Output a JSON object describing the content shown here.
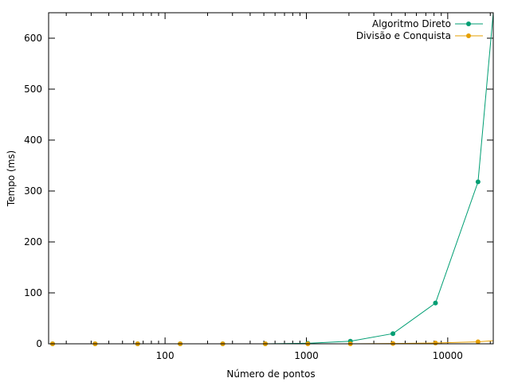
{
  "chart_data": {
    "type": "line",
    "title": "",
    "xlabel": "Número de pontos",
    "ylabel": "Tempo (ms)",
    "x_scale": "log",
    "xlim": [
      15,
      21000
    ],
    "ylim": [
      0,
      650
    ],
    "x_tick_labels": [
      {
        "value": 100,
        "label": "100"
      },
      {
        "value": 1000,
        "label": "1000"
      },
      {
        "value": 10000,
        "label": "10000"
      }
    ],
    "y_ticks": [
      0,
      100,
      200,
      300,
      400,
      500,
      600
    ],
    "grid": false,
    "legend_position": "top-right",
    "series": [
      {
        "name": "Algoritmo Direto",
        "color": "#009e73",
        "x": [
          16,
          32,
          64,
          128,
          256,
          512,
          1024,
          2048,
          4096,
          8192,
          16384,
          21000
        ],
        "y": [
          0,
          0,
          0,
          0,
          0,
          0,
          1,
          5,
          20,
          80,
          318,
          650
        ]
      },
      {
        "name": "Divisão e Conquista",
        "color": "#e69f00",
        "x": [
          16,
          32,
          64,
          128,
          256,
          512,
          1024,
          2048,
          4096,
          8192,
          16384,
          21000
        ],
        "y": [
          0,
          0,
          0,
          0,
          0,
          0,
          0,
          0,
          0.5,
          1.5,
          4,
          6
        ]
      }
    ]
  }
}
